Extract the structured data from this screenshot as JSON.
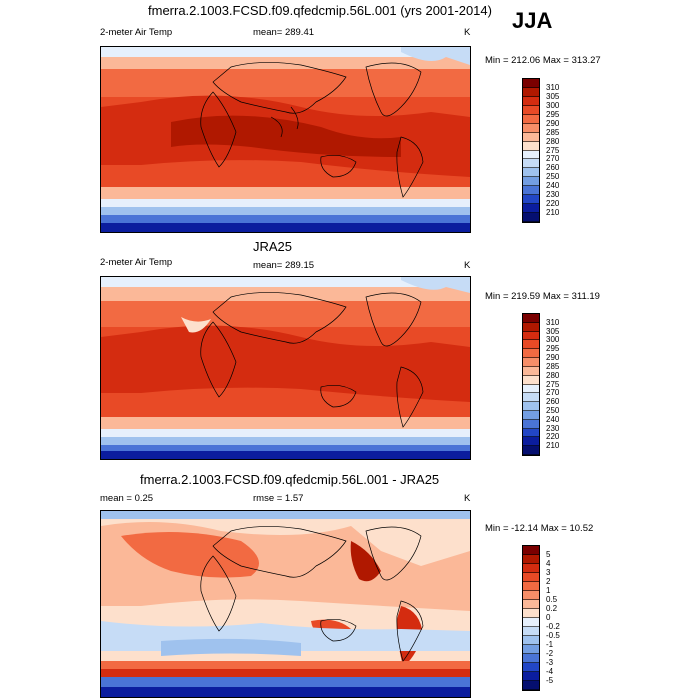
{
  "season": "JJA",
  "panels": [
    {
      "title": "fmerra.2.1003.FCSD.f09.qfedcmip.56L.001 (yrs 2001-2014)",
      "variable": "2-meter Air Temp",
      "center": "mean= 289.41",
      "units": "K",
      "minmax": "Min = 212.06 Max = 313.27",
      "levels": [
        "310",
        "305",
        "300",
        "295",
        "290",
        "285",
        "280",
        "275",
        "270",
        "260",
        "250",
        "240",
        "230",
        "220",
        "210"
      ]
    },
    {
      "title": "JRA25",
      "variable": "2-meter Air Temp",
      "center": "mean= 289.15",
      "units": "K",
      "minmax": "Min = 219.59 Max = 311.19",
      "levels": [
        "310",
        "305",
        "300",
        "295",
        "290",
        "285",
        "280",
        "275",
        "270",
        "260",
        "250",
        "240",
        "230",
        "220",
        "210"
      ]
    },
    {
      "title": "fmerra.2.1003.FCSD.f09.qfedcmip.56L.001 - JRA25",
      "variable": "mean =   0.25",
      "center": "rmse =   1.57",
      "units": "K",
      "minmax": "Min = -12.14 Max =  10.52",
      "levels": [
        "5",
        "4",
        "3",
        "2",
        "1",
        "0.5",
        "0.2",
        "0",
        "-0.2",
        "-0.5",
        "-1",
        "-2",
        "-3",
        "-4",
        "-5"
      ]
    }
  ],
  "colors": {
    "abs_scale": [
      "#7a0000",
      "#b01800",
      "#d42c10",
      "#e84a26",
      "#f26a42",
      "#f78e68",
      "#fbb898",
      "#fde0cc",
      "#e6f0fc",
      "#c6dcf6",
      "#9fc2ee",
      "#739ee2",
      "#4a74d6",
      "#2246c6",
      "#0b1d9e",
      "#050f70"
    ],
    "diff_scale": [
      "#7a0000",
      "#b01800",
      "#d42c10",
      "#e84a26",
      "#f26a42",
      "#f78e68",
      "#fbb898",
      "#fde0cc",
      "#e6f0fc",
      "#c6dcf6",
      "#9fc2ee",
      "#739ee2",
      "#4a74d6",
      "#2246c6",
      "#0b1d9e",
      "#050f70"
    ]
  }
}
